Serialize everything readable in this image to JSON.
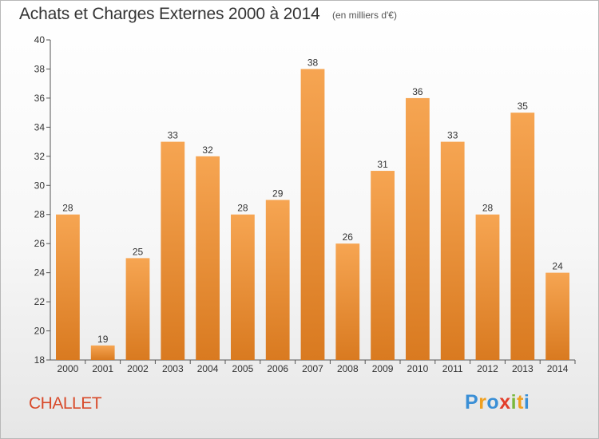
{
  "title": "Achats et Charges Externes 2000 à 2014",
  "subtitle": "(en milliers d'€)",
  "commune": "CHALLET",
  "logo": {
    "letters": [
      "P",
      "r",
      "o",
      "x",
      "i",
      "t",
      "i"
    ],
    "colors": [
      "#3a8fd6",
      "#f0a020",
      "#3a8fd6",
      "#e23d2a",
      "#7ab83c",
      "#f0a020",
      "#3a8fd6"
    ]
  },
  "colors": {
    "bar_light": "#f6a552",
    "bar_dark": "#d97a20",
    "commune": "#d84a2a"
  },
  "chart_data": {
    "type": "bar",
    "categories": [
      "2000",
      "2001",
      "2002",
      "2003",
      "2004",
      "2005",
      "2006",
      "2007",
      "2008",
      "2009",
      "2010",
      "2011",
      "2012",
      "2013",
      "2014"
    ],
    "values": [
      28,
      19,
      25,
      33,
      32,
      28,
      29,
      38,
      26,
      31,
      36,
      33,
      28,
      35,
      24
    ],
    "ylim": [
      18,
      40
    ],
    "yticks": [
      18,
      20,
      22,
      24,
      26,
      28,
      30,
      32,
      34,
      36,
      38,
      40
    ],
    "grid": false,
    "data_labels": true
  }
}
